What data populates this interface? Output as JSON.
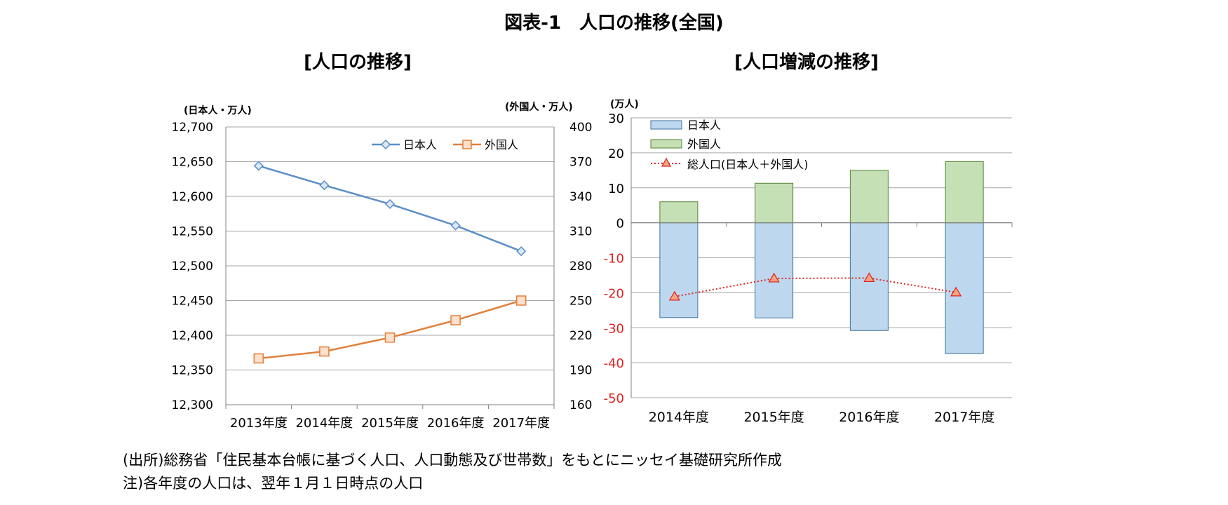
{
  "figure_title": "図表-1　人口の推移(全国)",
  "chart_data": [
    {
      "type": "line",
      "title": "[人口の推移]",
      "y_left_unit": "(日本人・万人)",
      "y_right_unit": "(外国人・万人)",
      "categories": [
        "2013年度",
        "2014年度",
        "2015年度",
        "2016年度",
        "2017年度"
      ],
      "ylim_left": [
        12300,
        12700
      ],
      "ylim_right": [
        160,
        400
      ],
      "yticks_left": [
        "12,700",
        "12,650",
        "12,600",
        "12,550",
        "12,500",
        "12,450",
        "12,400",
        "12,350",
        "12,300"
      ],
      "yticks_right": [
        "400",
        "370",
        "340",
        "310",
        "280",
        "250",
        "220",
        "190",
        "160"
      ],
      "grid": true,
      "legend_position": "top-right",
      "series": [
        {
          "name": "日本人",
          "axis": "left",
          "color": "#5b8fc7",
          "marker": "diamond",
          "values": [
            12644,
            12616,
            12589,
            12558,
            12521
          ]
        },
        {
          "name": "外国人",
          "axis": "right",
          "color": "#e0803c",
          "marker": "square",
          "values": [
            200,
            206,
            218,
            233,
            250
          ]
        }
      ]
    },
    {
      "type": "bar",
      "stacked": true,
      "title": "[人口増減の推移]",
      "y_unit": "(万人)",
      "categories": [
        "2014年度",
        "2015年度",
        "2016年度",
        "2017年度"
      ],
      "ylim": [
        -50,
        30
      ],
      "yticks": [
        "30",
        "20",
        "10",
        "0",
        "-10",
        "-20",
        "-30",
        "-40",
        "-50"
      ],
      "negative_tick_color": "#e02020",
      "grid": true,
      "legend_position": "top-left",
      "series": [
        {
          "name": "日本人",
          "type": "bar",
          "color": "#bdd7ee",
          "values": [
            -27.1,
            -27.2,
            -30.8,
            -37.4
          ]
        },
        {
          "name": "外国人",
          "type": "bar",
          "color": "#c5e0b4",
          "values": [
            6.0,
            11.3,
            15.0,
            17.5
          ]
        },
        {
          "name": "総人口(日本人＋外国人)",
          "type": "line",
          "style": "dotted",
          "color": "#e02020",
          "marker": "triangle",
          "values": [
            -21.1,
            -15.9,
            -15.8,
            -19.9
          ]
        }
      ]
    }
  ],
  "notes": [
    "(出所)総務省「住民基本台帳に基づく人口、人口動態及び世帯数」をもとにニッセイ基礎研究所作成",
    "注)各年度の人口は、翌年１月１日時点の人口"
  ]
}
